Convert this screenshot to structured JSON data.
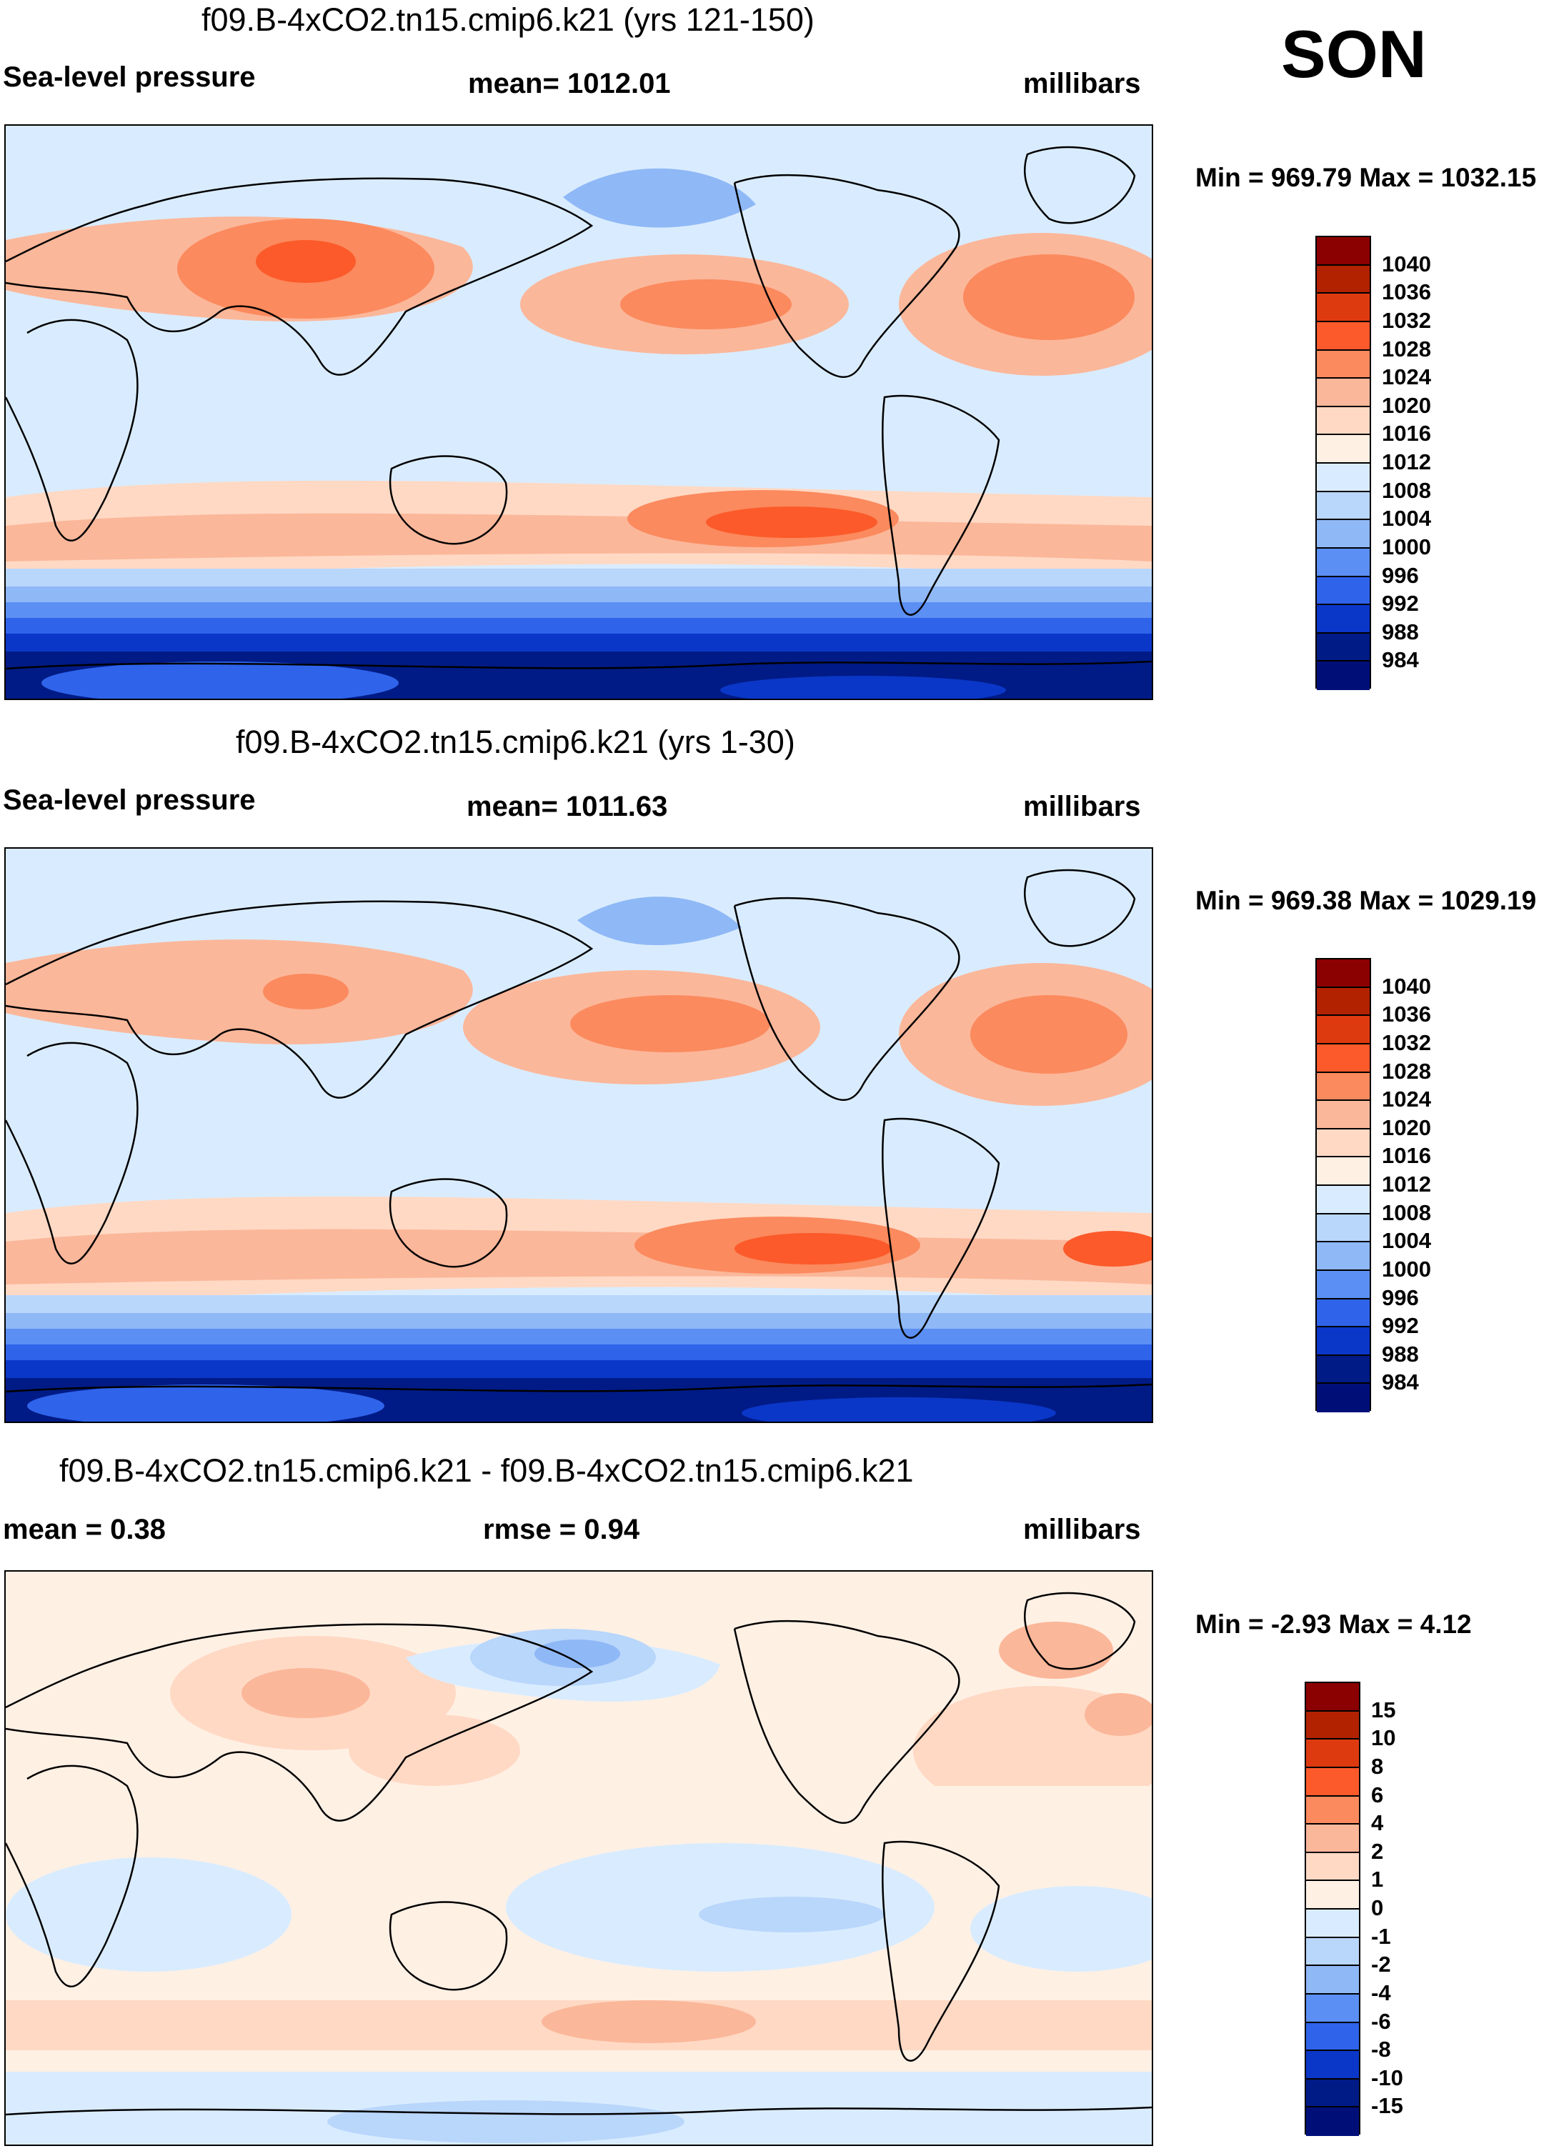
{
  "season_label": "SON",
  "chart_data": [
    {
      "type": "contour-map",
      "title": "f09.B-4xCO2.tn15.cmip6.k21 (yrs 121-150)",
      "left_label": "Sea-level pressure",
      "center_label": "mean= 1012.01",
      "right_label": "millibars",
      "minmax_label": "Min = 969.79 Max = 1032.15",
      "stats": {
        "mean": 1012.01,
        "min": 969.79,
        "max": 1032.15,
        "units": "millibars"
      },
      "levels": [
        "1040",
        "1036",
        "1032",
        "1028",
        "1024",
        "1020",
        "1016",
        "1012",
        "1008",
        "1004",
        "1000",
        "996",
        "992",
        "988",
        "984"
      ],
      "colors": [
        "#8b0000",
        "#b22200",
        "#de3a10",
        "#fc5a2a",
        "#fb8a5e",
        "#fbb79a",
        "#ffd9c4",
        "#fff0e4",
        "#d9ecff",
        "#b9d6fb",
        "#8fb8f6",
        "#5b8ff3",
        "#2f63ea",
        "#0b37c8",
        "#001b86",
        "#000f78"
      ]
    },
    {
      "type": "contour-map",
      "title": "f09.B-4xCO2.tn15.cmip6.k21 (yrs 1-30)",
      "left_label": "Sea-level pressure",
      "center_label": "mean= 1011.63",
      "right_label": "millibars",
      "minmax_label": "Min = 969.38 Max = 1029.19",
      "stats": {
        "mean": 1011.63,
        "min": 969.38,
        "max": 1029.19,
        "units": "millibars"
      },
      "levels": [
        "1040",
        "1036",
        "1032",
        "1028",
        "1024",
        "1020",
        "1016",
        "1012",
        "1008",
        "1004",
        "1000",
        "996",
        "992",
        "988",
        "984"
      ],
      "colors": [
        "#8b0000",
        "#b22200",
        "#de3a10",
        "#fc5a2a",
        "#fb8a5e",
        "#fbb79a",
        "#ffd9c4",
        "#fff0e4",
        "#d9ecff",
        "#b9d6fb",
        "#8fb8f6",
        "#5b8ff3",
        "#2f63ea",
        "#0b37c8",
        "#001b86",
        "#000f78"
      ]
    },
    {
      "type": "contour-map",
      "title": "f09.B-4xCO2.tn15.cmip6.k21 - f09.B-4xCO2.tn15.cmip6.k21",
      "left_label": "mean =   0.38",
      "center_label": "rmse =   0.94",
      "right_label": "millibars",
      "minmax_label": "Min =  -2.93 Max =   4.12",
      "stats": {
        "mean": 0.38,
        "rmse": 0.94,
        "min": -2.93,
        "max": 4.12,
        "units": "millibars"
      },
      "levels": [
        "15",
        "10",
        "8",
        "6",
        "4",
        "2",
        "1",
        "0",
        "-1",
        "-2",
        "-4",
        "-6",
        "-8",
        "-10",
        "-15"
      ],
      "colors": [
        "#8b0000",
        "#b22200",
        "#de3a10",
        "#fc5a2a",
        "#fb8a5e",
        "#fbb79a",
        "#ffd9c4",
        "#fff0e4",
        "#d9ecff",
        "#b9d6fb",
        "#8fb8f6",
        "#5b8ff3",
        "#2f63ea",
        "#0b37c8",
        "#001b86",
        "#000f78"
      ]
    }
  ]
}
